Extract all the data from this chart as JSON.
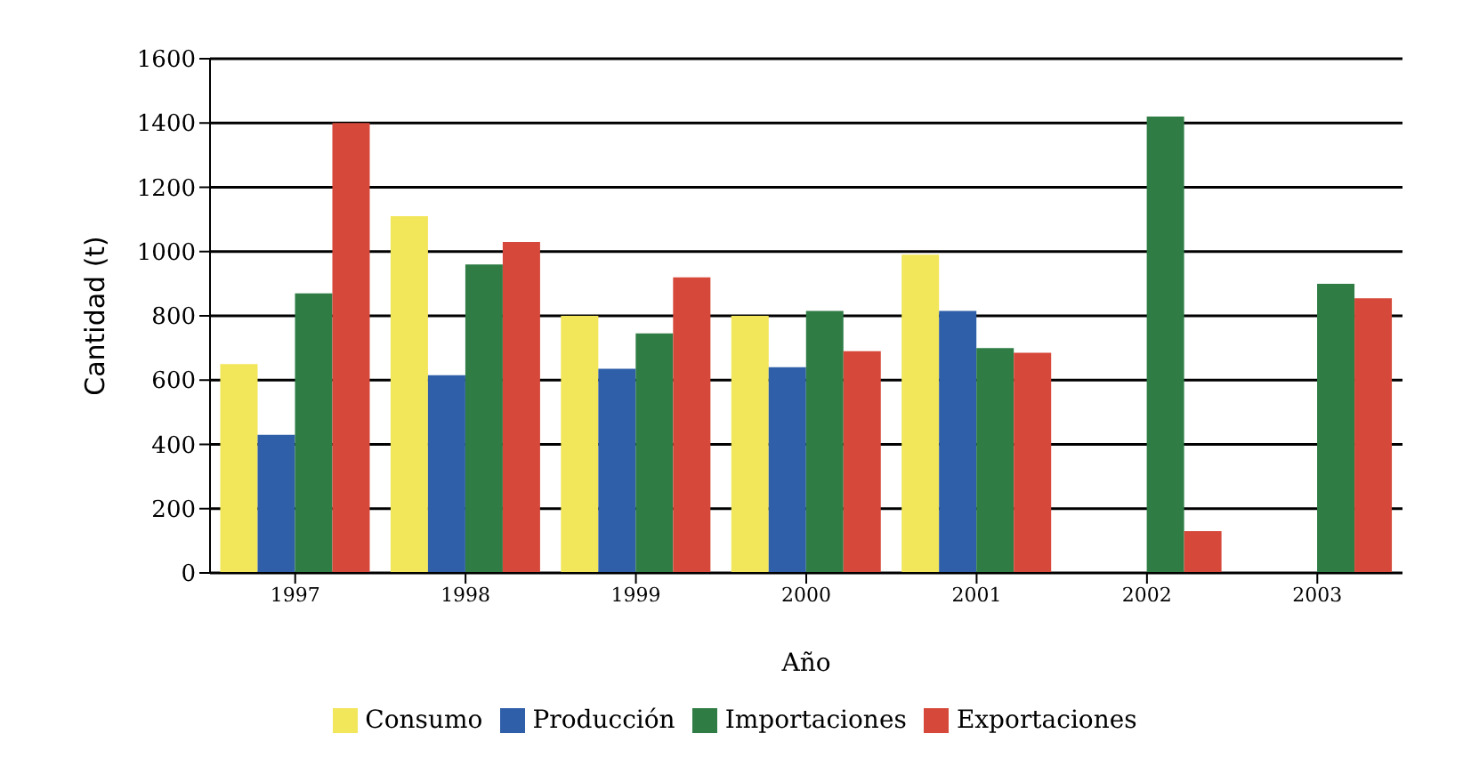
{
  "chart_data": {
    "type": "bar",
    "xlabel": "Año",
    "ylabel": "Cantidad (t)",
    "categories": [
      "1997",
      "1998",
      "1999",
      "2000",
      "2001",
      "2002",
      "2003"
    ],
    "series": [
      {
        "name": "Consumo",
        "color": "#f2e65a",
        "values": [
          650,
          1110,
          800,
          800,
          990,
          null,
          null
        ]
      },
      {
        "name": "Producción",
        "color": "#2f5fa8",
        "values": [
          430,
          615,
          635,
          640,
          815,
          null,
          null
        ]
      },
      {
        "name": "Importaciones",
        "color": "#2f7d45",
        "values": [
          870,
          960,
          745,
          815,
          700,
          1420,
          900
        ]
      },
      {
        "name": "Exportaciones",
        "color": "#d6493a",
        "values": [
          1400,
          1030,
          920,
          690,
          685,
          130,
          855
        ]
      }
    ],
    "ylim": [
      0,
      1600
    ],
    "yticks": [
      0,
      200,
      400,
      600,
      800,
      1000,
      1200,
      1400,
      1600
    ],
    "grid": "y",
    "legend": "bottom"
  }
}
